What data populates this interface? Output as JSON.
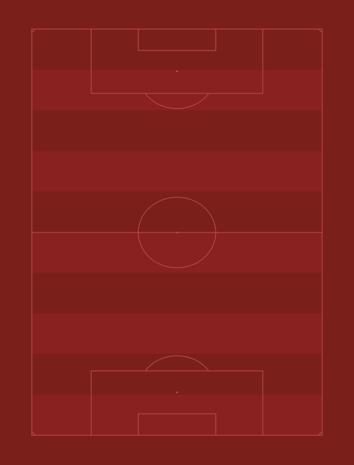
{
  "pitch": {
    "surround_color": "#7b1f1b",
    "stripe_dark_color": "#7b1f1b",
    "stripe_light_color": "#88211f",
    "line_color": "#c0504a"
  }
}
